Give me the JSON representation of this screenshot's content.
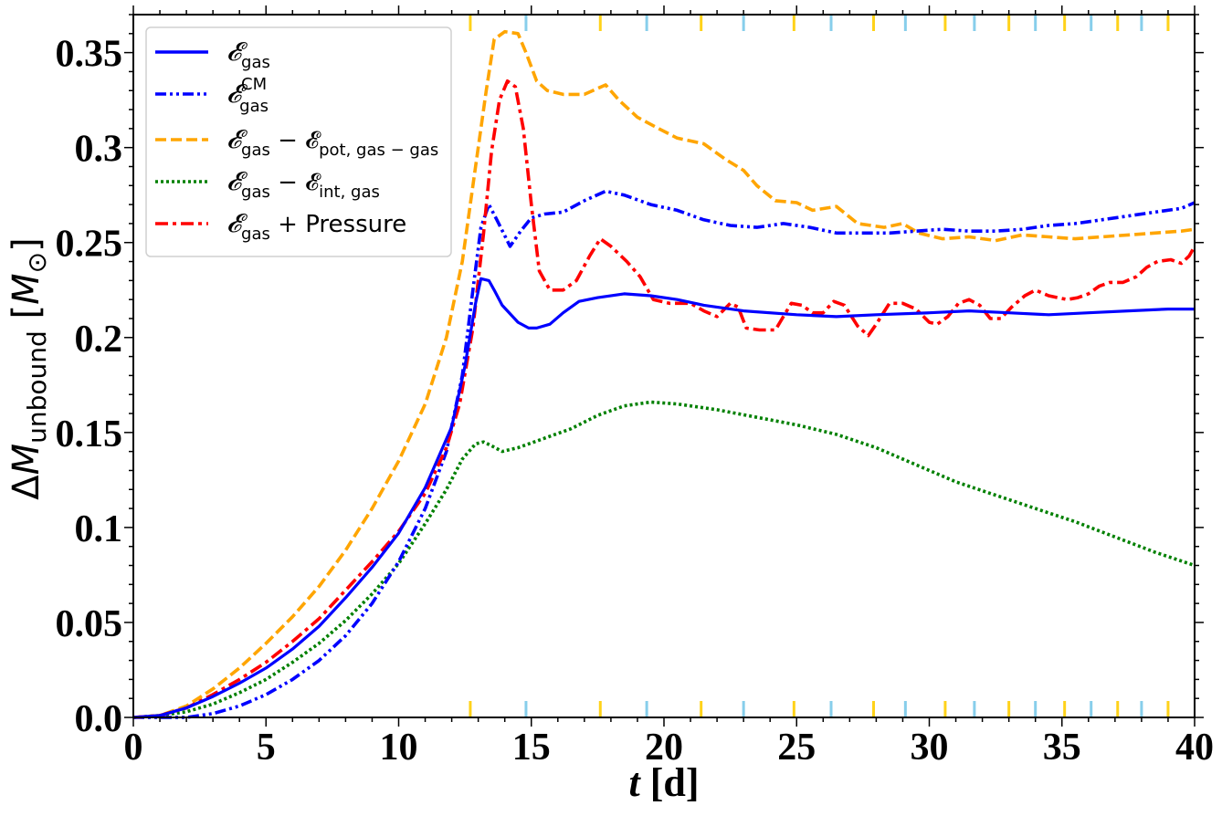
{
  "chart_data": {
    "type": "line",
    "xlabel": "t [d]",
    "ylabel": "ΔM_unbound [M_⊙]",
    "xlim": [
      0,
      40
    ],
    "ylim": [
      0,
      0.37
    ],
    "x_ticks": [
      "0",
      "5",
      "10",
      "15",
      "20",
      "25",
      "30",
      "35",
      "40"
    ],
    "y_ticks": [
      "0.0",
      "0.05",
      "0.1",
      "0.15",
      "0.2",
      "0.25",
      "0.3",
      "0.35"
    ],
    "legend_position": "top-left",
    "series": [
      {
        "name": "𝓔gas",
        "color": "#0000ff",
        "style": "solid",
        "points": [
          [
            0,
            0
          ],
          [
            1,
            0.001
          ],
          [
            2,
            0.005
          ],
          [
            3,
            0.011
          ],
          [
            4,
            0.018
          ],
          [
            5,
            0.026
          ],
          [
            6,
            0.036
          ],
          [
            7,
            0.048
          ],
          [
            8,
            0.063
          ],
          [
            9,
            0.079
          ],
          [
            10,
            0.097
          ],
          [
            11,
            0.121
          ],
          [
            12,
            0.153
          ],
          [
            12.5,
            0.185
          ],
          [
            12.9,
            0.218
          ],
          [
            13.1,
            0.231
          ],
          [
            13.4,
            0.23
          ],
          [
            13.6,
            0.225
          ],
          [
            13.9,
            0.217
          ],
          [
            14.5,
            0.208
          ],
          [
            14.9,
            0.205
          ],
          [
            15.2,
            0.205
          ],
          [
            15.7,
            0.207
          ],
          [
            16.2,
            0.213
          ],
          [
            16.8,
            0.219
          ],
          [
            17.5,
            0.221
          ],
          [
            18.5,
            0.223
          ],
          [
            19.5,
            0.222
          ],
          [
            20.5,
            0.22
          ],
          [
            21.5,
            0.217
          ],
          [
            23,
            0.214
          ],
          [
            25,
            0.212
          ],
          [
            26.5,
            0.211
          ],
          [
            28,
            0.212
          ],
          [
            30,
            0.213
          ],
          [
            31.5,
            0.214
          ],
          [
            33,
            0.213
          ],
          [
            34.5,
            0.212
          ],
          [
            36,
            0.213
          ],
          [
            37.5,
            0.214
          ],
          [
            39,
            0.215
          ],
          [
            40,
            0.215
          ]
        ]
      },
      {
        "name": "𝓔gas CM",
        "color": "#0000ff",
        "style": "dashdotdot",
        "points": [
          [
            0,
            0
          ],
          [
            2,
            0
          ],
          [
            3,
            0.002
          ],
          [
            4,
            0.006
          ],
          [
            5,
            0.012
          ],
          [
            6,
            0.02
          ],
          [
            7,
            0.03
          ],
          [
            8,
            0.043
          ],
          [
            9,
            0.06
          ],
          [
            10,
            0.082
          ],
          [
            11,
            0.11
          ],
          [
            11.8,
            0.14
          ],
          [
            12.4,
            0.18
          ],
          [
            12.8,
            0.225
          ],
          [
            13.1,
            0.258
          ],
          [
            13.4,
            0.27
          ],
          [
            13.7,
            0.262
          ],
          [
            14.2,
            0.248
          ],
          [
            14.6,
            0.256
          ],
          [
            15,
            0.263
          ],
          [
            15.5,
            0.265
          ],
          [
            16.2,
            0.266
          ],
          [
            17,
            0.272
          ],
          [
            17.8,
            0.277
          ],
          [
            18.5,
            0.275
          ],
          [
            19.5,
            0.27
          ],
          [
            20.5,
            0.267
          ],
          [
            21.5,
            0.262
          ],
          [
            22.5,
            0.259
          ],
          [
            23.5,
            0.258
          ],
          [
            24.5,
            0.26
          ],
          [
            25.5,
            0.258
          ],
          [
            26.5,
            0.255
          ],
          [
            27.5,
            0.255
          ],
          [
            28.5,
            0.255
          ],
          [
            29.5,
            0.256
          ],
          [
            30.5,
            0.257
          ],
          [
            31.5,
            0.256
          ],
          [
            32.5,
            0.256
          ],
          [
            33.5,
            0.257
          ],
          [
            34.5,
            0.259
          ],
          [
            35.5,
            0.26
          ],
          [
            36.5,
            0.262
          ],
          [
            37.5,
            0.264
          ],
          [
            38.5,
            0.266
          ],
          [
            39.5,
            0.268
          ],
          [
            40,
            0.271
          ]
        ]
      },
      {
        "name": "𝓔gas − 𝓔pot,gas−gas",
        "color": "#ffa500",
        "style": "dashed",
        "points": [
          [
            0,
            0
          ],
          [
            1,
            0.001
          ],
          [
            2,
            0.006
          ],
          [
            3,
            0.015
          ],
          [
            4,
            0.026
          ],
          [
            5,
            0.039
          ],
          [
            6,
            0.053
          ],
          [
            7,
            0.069
          ],
          [
            8,
            0.088
          ],
          [
            9,
            0.11
          ],
          [
            10,
            0.135
          ],
          [
            11,
            0.165
          ],
          [
            11.8,
            0.2
          ],
          [
            12.4,
            0.24
          ],
          [
            12.9,
            0.29
          ],
          [
            13.3,
            0.33
          ],
          [
            13.6,
            0.357
          ],
          [
            14,
            0.361
          ],
          [
            14.5,
            0.36
          ],
          [
            14.8,
            0.35
          ],
          [
            15.2,
            0.335
          ],
          [
            15.6,
            0.33
          ],
          [
            16.2,
            0.328
          ],
          [
            17,
            0.328
          ],
          [
            17.8,
            0.333
          ],
          [
            18.3,
            0.325
          ],
          [
            19,
            0.316
          ],
          [
            19.8,
            0.31
          ],
          [
            20.5,
            0.305
          ],
          [
            21.5,
            0.302
          ],
          [
            22.3,
            0.294
          ],
          [
            23,
            0.288
          ],
          [
            23.5,
            0.28
          ],
          [
            24.2,
            0.272
          ],
          [
            25,
            0.271
          ],
          [
            25.6,
            0.267
          ],
          [
            26.5,
            0.269
          ],
          [
            27.3,
            0.26
          ],
          [
            28.3,
            0.258
          ],
          [
            29,
            0.26
          ],
          [
            29.6,
            0.255
          ],
          [
            30.5,
            0.252
          ],
          [
            31.5,
            0.253
          ],
          [
            32.5,
            0.251
          ],
          [
            33.5,
            0.254
          ],
          [
            34.5,
            0.253
          ],
          [
            35.5,
            0.252
          ],
          [
            36.5,
            0.253
          ],
          [
            37.5,
            0.254
          ],
          [
            38.5,
            0.255
          ],
          [
            39.5,
            0.256
          ],
          [
            40,
            0.257
          ]
        ]
      },
      {
        "name": "𝓔gas − 𝓔int,gas",
        "color": "#008000",
        "style": "dotted",
        "points": [
          [
            0,
            0
          ],
          [
            1,
            0.001
          ],
          [
            2,
            0.003
          ],
          [
            3,
            0.007
          ],
          [
            4,
            0.013
          ],
          [
            5,
            0.02
          ],
          [
            6,
            0.029
          ],
          [
            7,
            0.039
          ],
          [
            8,
            0.051
          ],
          [
            9,
            0.065
          ],
          [
            10,
            0.081
          ],
          [
            11,
            0.102
          ],
          [
            11.8,
            0.12
          ],
          [
            12.4,
            0.136
          ],
          [
            12.9,
            0.144
          ],
          [
            13.2,
            0.145
          ],
          [
            13.5,
            0.143
          ],
          [
            13.9,
            0.14
          ],
          [
            14.5,
            0.142
          ],
          [
            15.5,
            0.147
          ],
          [
            16.5,
            0.152
          ],
          [
            17.5,
            0.159
          ],
          [
            18.5,
            0.164
          ],
          [
            19.5,
            0.166
          ],
          [
            20.5,
            0.165
          ],
          [
            22,
            0.162
          ],
          [
            23.5,
            0.158
          ],
          [
            25,
            0.154
          ],
          [
            26.5,
            0.149
          ],
          [
            28,
            0.142
          ],
          [
            29.5,
            0.133
          ],
          [
            31,
            0.124
          ],
          [
            32.5,
            0.117
          ],
          [
            34,
            0.11
          ],
          [
            35.5,
            0.103
          ],
          [
            37,
            0.095
          ],
          [
            38.5,
            0.087
          ],
          [
            40,
            0.08
          ]
        ]
      },
      {
        "name": "𝓔gas + Pressure",
        "color": "#ff0000",
        "style": "dashdot",
        "points": [
          [
            0,
            0
          ],
          [
            1,
            0.001
          ],
          [
            2,
            0.005
          ],
          [
            3,
            0.012
          ],
          [
            4,
            0.02
          ],
          [
            5,
            0.029
          ],
          [
            6,
            0.04
          ],
          [
            7,
            0.052
          ],
          [
            8,
            0.067
          ],
          [
            9,
            0.082
          ],
          [
            10,
            0.098
          ],
          [
            11,
            0.118
          ],
          [
            11.8,
            0.142
          ],
          [
            12.3,
            0.165
          ],
          [
            12.8,
            0.205
          ],
          [
            13.2,
            0.255
          ],
          [
            13.5,
            0.298
          ],
          [
            13.8,
            0.325
          ],
          [
            14.1,
            0.335
          ],
          [
            14.4,
            0.332
          ],
          [
            14.7,
            0.31
          ],
          [
            15,
            0.27
          ],
          [
            15.3,
            0.235
          ],
          [
            15.7,
            0.225
          ],
          [
            16.2,
            0.225
          ],
          [
            16.7,
            0.23
          ],
          [
            17.2,
            0.243
          ],
          [
            17.6,
            0.252
          ],
          [
            18,
            0.248
          ],
          [
            18.6,
            0.24
          ],
          [
            19.1,
            0.232
          ],
          [
            19.6,
            0.22
          ],
          [
            20.2,
            0.218
          ],
          [
            21,
            0.218
          ],
          [
            21.5,
            0.214
          ],
          [
            22,
            0.211
          ],
          [
            22.5,
            0.218
          ],
          [
            22.8,
            0.216
          ],
          [
            23.1,
            0.205
          ],
          [
            23.6,
            0.204
          ],
          [
            24.2,
            0.204
          ],
          [
            24.8,
            0.218
          ],
          [
            25.2,
            0.217
          ],
          [
            25.6,
            0.213
          ],
          [
            26,
            0.213
          ],
          [
            26.4,
            0.219
          ],
          [
            26.8,
            0.217
          ],
          [
            27.3,
            0.206
          ],
          [
            27.7,
            0.201
          ],
          [
            28,
            0.207
          ],
          [
            28.5,
            0.218
          ],
          [
            29,
            0.218
          ],
          [
            29.5,
            0.215
          ],
          [
            30,
            0.208
          ],
          [
            30.3,
            0.207
          ],
          [
            30.7,
            0.211
          ],
          [
            31.1,
            0.218
          ],
          [
            31.5,
            0.22
          ],
          [
            31.9,
            0.217
          ],
          [
            32.3,
            0.21
          ],
          [
            32.7,
            0.21
          ],
          [
            33.1,
            0.216
          ],
          [
            33.6,
            0.222
          ],
          [
            34,
            0.225
          ],
          [
            34.5,
            0.222
          ],
          [
            35.2,
            0.22
          ],
          [
            35.6,
            0.221
          ],
          [
            36,
            0.223
          ],
          [
            36.4,
            0.227
          ],
          [
            36.8,
            0.229
          ],
          [
            37.3,
            0.229
          ],
          [
            37.8,
            0.232
          ],
          [
            38.2,
            0.237
          ],
          [
            38.6,
            0.24
          ],
          [
            39.1,
            0.241
          ],
          [
            39.5,
            0.239
          ],
          [
            39.8,
            0.243
          ],
          [
            40,
            0.248
          ]
        ]
      }
    ],
    "marker_ticks": {
      "gold": [
        12.7,
        17.6,
        21.4,
        24.9,
        27.9,
        30.6,
        33,
        35.1,
        37.1,
        39
      ],
      "skyblue": [
        14.8,
        19.35,
        23,
        26.3,
        29.1,
        31.7,
        34,
        36.1,
        38
      ]
    }
  },
  "legend": {
    "items": [
      {
        "base": "𝓔",
        "sub": "gas",
        "sup": "",
        "rest": ""
      },
      {
        "base": "𝓔",
        "sub": "gas",
        "sup": "CM",
        "rest": ""
      },
      {
        "base": "𝓔",
        "sub": "gas",
        "sup": "",
        "rest": " − 𝓔",
        "rest_sub": "pot, gas − gas"
      },
      {
        "base": "𝓔",
        "sub": "gas",
        "sup": "",
        "rest": " − 𝓔",
        "rest_sub": "int, gas"
      },
      {
        "base": "𝓔",
        "sub": "gas",
        "sup": "",
        "rest": " +  Pressure",
        "rest_sub": ""
      }
    ]
  },
  "axis_labels": {
    "x_main": "t",
    "x_unit": " [d]",
    "y_delta": "Δ",
    "y_M": "M",
    "y_sub": "unbound",
    "y_unit_open": " [",
    "y_unit_M": "M",
    "y_unit_sub": "⊙",
    "y_unit_close": "]"
  }
}
